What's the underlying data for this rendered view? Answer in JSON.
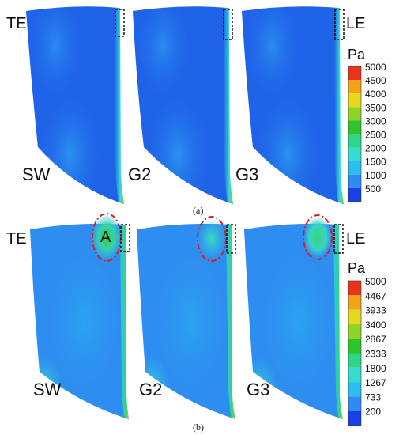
{
  "panel_a": {
    "caption": "(a)",
    "blade_labels": [
      "SW",
      "G2",
      "G3"
    ],
    "edge_labels": {
      "trailing": "TE",
      "leading": "LE"
    },
    "colorbar": {
      "unit": "Pa",
      "ticks": [
        "5000",
        "4500",
        "4000",
        "3500",
        "3000",
        "2500",
        "2000",
        "1500",
        "1000",
        "500"
      ],
      "colors": [
        "#e8341a",
        "#f5a11a",
        "#e6d81c",
        "#8fd426",
        "#2fc42a",
        "#2ed688",
        "#35dccf",
        "#2bbff0",
        "#2f8bf2",
        "#1a3fe6"
      ]
    }
  },
  "panel_b": {
    "caption": "(b)",
    "blade_labels": [
      "SW",
      "G2",
      "G3"
    ],
    "edge_labels": {
      "trailing": "TE",
      "leading": "LE"
    },
    "region_label": "A",
    "colorbar": {
      "unit": "Pa",
      "ticks": [
        "5000",
        "4467",
        "3933",
        "3400",
        "2867",
        "2333",
        "1800",
        "1267",
        "733",
        "200"
      ],
      "colors": [
        "#e8341a",
        "#f5a11a",
        "#e6d81c",
        "#8fd426",
        "#2fc42a",
        "#2ed688",
        "#35dccf",
        "#2bbff0",
        "#2f8bf2",
        "#1a3fe6"
      ]
    }
  }
}
